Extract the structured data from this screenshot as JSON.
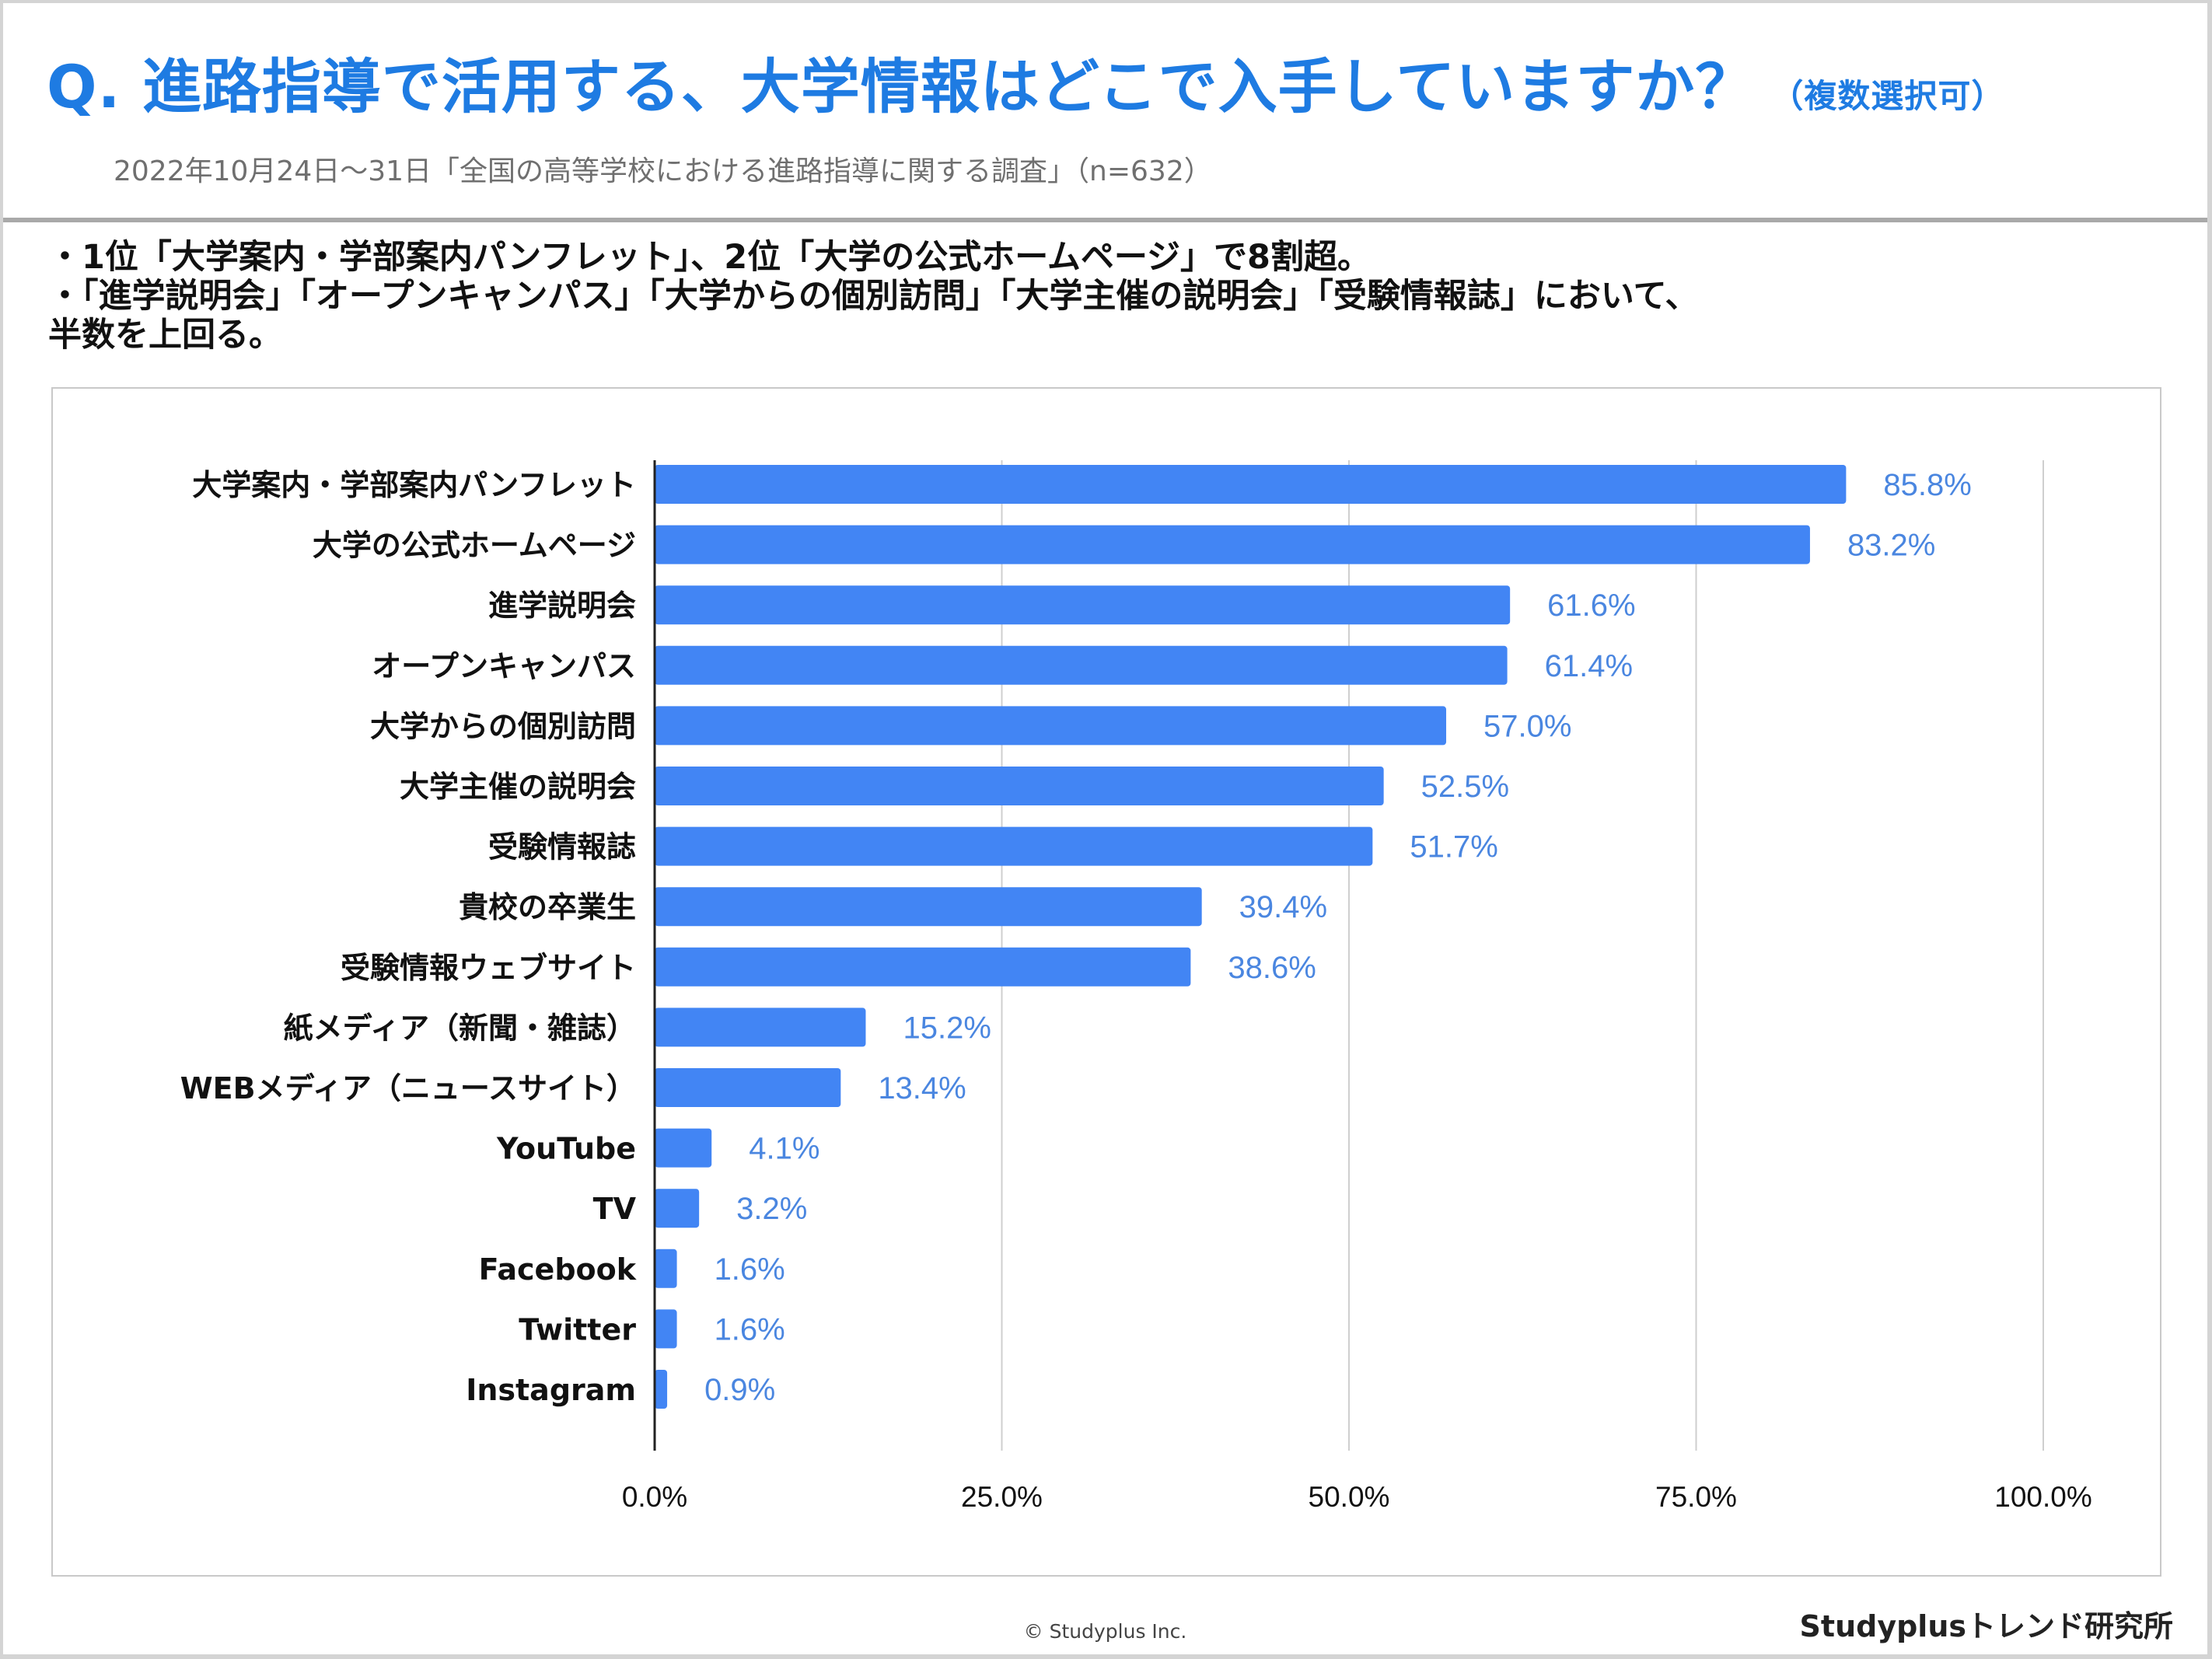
{
  "header": {
    "title": "Q. 進路指導で活用する、大学情報はどこで入手していますか？",
    "title_note": "（複数選択可）",
    "subtitle": "2022年10月24日〜31日「全国の高等学校における進路指導に関する調査」（n=632）"
  },
  "summary": {
    "line1": "・1位「大学案内・学部案内パンフレット」、2位「大学の公式ホームページ」で8割超。",
    "line2": "・「進学説明会」「オープンキャンパス」「大学からの個別訪問」「大学主催の説明会」「受験情報誌」において、",
    "line3": "半数を上回る。"
  },
  "chart_data": {
    "type": "bar",
    "orientation": "horizontal",
    "categories": [
      "大学案内・学部案内パンフレット",
      "大学の公式ホームページ",
      "進学説明会",
      "オープンキャンパス",
      "大学からの個別訪問",
      "大学主催の説明会",
      "受験情報誌",
      "貴校の卒業生",
      "受験情報ウェブサイト",
      "紙メディア（新聞・雑誌）",
      "WEBメディア（ニュースサイト）",
      "YouTube",
      "TV",
      "Facebook",
      "Twitter",
      "Instagram"
    ],
    "values": [
      85.8,
      83.2,
      61.6,
      61.4,
      57.0,
      52.5,
      51.7,
      39.4,
      38.6,
      15.2,
      13.4,
      4.1,
      3.2,
      1.6,
      1.6,
      0.9
    ],
    "value_labels": [
      "85.8%",
      "83.2%",
      "61.6%",
      "61.4%",
      "57.0%",
      "52.5%",
      "51.7%",
      "39.4%",
      "38.6%",
      "15.2%",
      "13.4%",
      "4.1%",
      "3.2%",
      "1.6%",
      "1.6%",
      "0.9%"
    ],
    "xlim": [
      0,
      100
    ],
    "xticks": [
      0,
      25,
      50,
      75,
      100
    ],
    "xtick_labels": [
      "0.0%",
      "25.0%",
      "50.0%",
      "75.0%",
      "100.0%"
    ],
    "grid": true,
    "legend": "none",
    "bar_color": "#4285f4",
    "label_color": "#4a86e0"
  },
  "footer": {
    "copyright": "© Studyplus Inc.",
    "brand": "Studyplusトレンド研究所"
  }
}
